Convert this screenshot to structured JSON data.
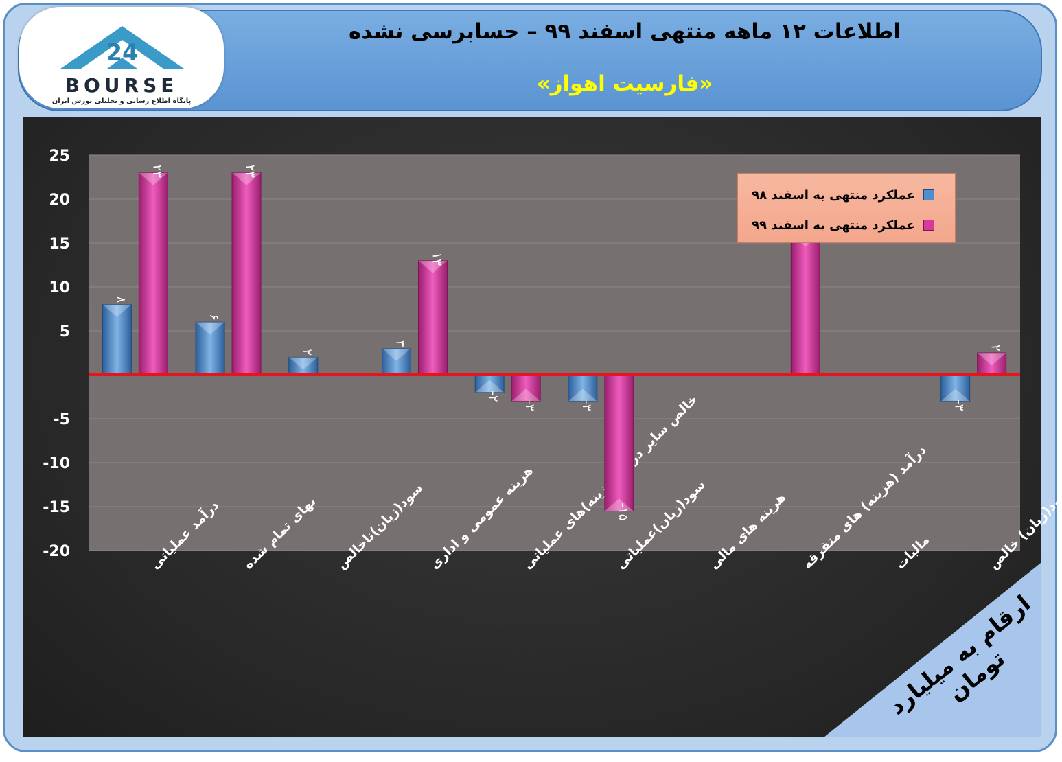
{
  "header": {
    "title": "اطلاعات ۱۲ ماهه منتهی اسفند ۹۹ – حسابرسی نشده",
    "subtitle": "«فارسیت اهواز»"
  },
  "logo": {
    "text": "BOURSE",
    "tagline": "پایگاه اطلاع رسانی و تحلیلی بورس ایران",
    "number": "24"
  },
  "unit_note": "ارقام به میلیارد تومان",
  "colors": {
    "series_98": "#4f8fd0",
    "series_99": "#d9399f",
    "zero_line": "#e8141b",
    "plot_bg": "#777070",
    "legend_bg": "#f5ae95"
  },
  "chart_data": {
    "type": "bar",
    "title": "",
    "xlabel": "",
    "ylabel": "",
    "ylim": [
      -20,
      25
    ],
    "yticks": [
      "25",
      "20",
      "15",
      "10",
      "5",
      "",
      "-5",
      "-10",
      "-15",
      "-20"
    ],
    "legend_position": "top-right",
    "grid": true,
    "categories": [
      "درآمد عملیاتی",
      "بهای تمام شده",
      "سود(زیان)ناخالص",
      "هزینه عمومی و اداری",
      "خالص سایر درامد(هزینه)های عملیاتی",
      "سود(زیان)عملیاتی",
      "هزینه های مالی",
      "درآمد (هزینه) های متفرقه",
      "مالیات",
      "سود(زیان) خالص"
    ],
    "series": [
      {
        "name": "عملکرد منتهی به اسفند ۹۸",
        "values": [
          8,
          6,
          2,
          3,
          -2,
          -3,
          0,
          0,
          0,
          -3
        ],
        "labels": [
          "۸",
          "۶",
          "۲",
          "۳",
          "-۲",
          "-۳",
          "",
          "",
          "",
          "-۳"
        ]
      },
      {
        "name": "عملکرد منتهی به اسفند ۹۹",
        "values": [
          23,
          23,
          0,
          13,
          -3,
          -15.5,
          0,
          16,
          0,
          2.5
        ],
        "labels": [
          "۲۳",
          "۲۳",
          "",
          "۱۳",
          "-۳",
          "-۱۵",
          "",
          "",
          "",
          "۲"
        ]
      }
    ]
  }
}
